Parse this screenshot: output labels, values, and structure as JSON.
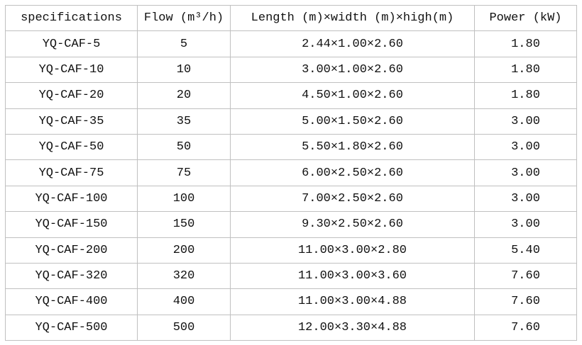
{
  "headers": [
    "specifications",
    "Flow (m³/h)",
    "Length (m)×width (m)×high(m)",
    "Power (kW)"
  ],
  "rows": [
    [
      "YQ-CAF-5",
      "5",
      "2.44×1.00×2.60",
      "1.80"
    ],
    [
      "YQ-CAF-10",
      "10",
      "3.00×1.00×2.60",
      "1.80"
    ],
    [
      "YQ-CAF-20",
      "20",
      "4.50×1.00×2.60",
      "1.80"
    ],
    [
      "YQ-CAF-35",
      "35",
      "5.00×1.50×2.60",
      "3.00"
    ],
    [
      "YQ-CAF-50",
      "50",
      "5.50×1.80×2.60",
      "3.00"
    ],
    [
      "YQ-CAF-75",
      "75",
      "6.00×2.50×2.60",
      "3.00"
    ],
    [
      "YQ-CAF-100",
      "100",
      "7.00×2.50×2.60",
      "3.00"
    ],
    [
      "YQ-CAF-150",
      "150",
      "9.30×2.50×2.60",
      "3.00"
    ],
    [
      "YQ-CAF-200",
      "200",
      "11.00×3.00×2.80",
      "5.40"
    ],
    [
      "YQ-CAF-320",
      "320",
      "11.00×3.00×3.60",
      "7.60"
    ],
    [
      "YQ-CAF-400",
      "400",
      "11.00×3.00×4.88",
      "7.60"
    ],
    [
      "YQ-CAF-500",
      "500",
      "12.00×3.30×4.88",
      "7.60"
    ]
  ]
}
